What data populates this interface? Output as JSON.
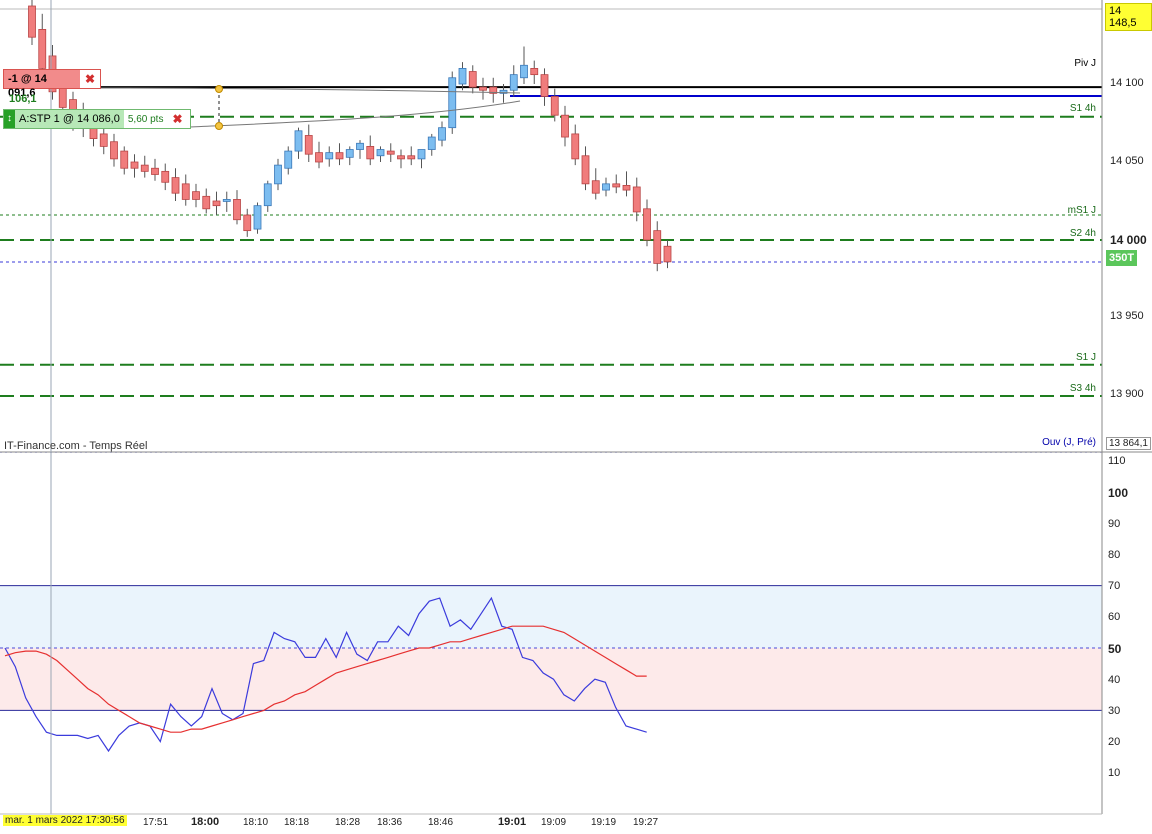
{
  "source_label": "IT-Finance.com - Temps Réel",
  "price_axis": {
    "ticks": [
      "14 100",
      "14 050",
      "14 000",
      "13 950",
      "13 900"
    ],
    "top_tag": "14 148,5",
    "bottom_tag": "13 864,1",
    "volume_tag": "350T"
  },
  "levels": [
    {
      "name": "Piv J",
      "value": 14098
    },
    {
      "name": "S1 4h",
      "value": 14079
    },
    {
      "name": "mS1 J",
      "value": 14016
    },
    {
      "name": "S2 4h",
      "value": 14000
    },
    {
      "name": "S1 J",
      "value": 13920
    },
    {
      "name": "S3 4h",
      "value": 13900
    },
    {
      "name": "Ouv (J, Pré)",
      "value": 13864
    }
  ],
  "orders": {
    "limit_label": "-1 @ 14 091,6",
    "stop_label": "A:STP  1 @ 14 086,0",
    "stop_points": "5,60 pts",
    "gain_label": "106,1"
  },
  "time_axis": {
    "first": "mar. 1 mars 2022 17:30:56",
    "ticks": [
      "17:51",
      "18:00",
      "18:10",
      "18:18",
      "18:28",
      "18:36",
      "18:46",
      "19:01",
      "19:09",
      "19:19",
      "19:27"
    ]
  },
  "osc_axis": {
    "ticks": [
      "110",
      "100",
      "90",
      "80",
      "70",
      "60",
      "50",
      "40",
      "30",
      "20",
      "10"
    ]
  },
  "colors": {
    "up": "#7cbdf0",
    "down": "#f07c7c",
    "level_green": "#1e7d1e",
    "pivot": "#000000",
    "blue_line": "#0000cc",
    "osc_blue": "#3b3bdc",
    "osc_red": "#e63030"
  },
  "chart_data": [
    {
      "type": "candlestick",
      "ylim": [
        13864,
        14148.5
      ],
      "candles": [
        [
          14150,
          14160,
          14130,
          14125
        ],
        [
          14135,
          14145,
          14110,
          14105
        ],
        [
          14118,
          14125,
          14095,
          14090
        ],
        [
          14100,
          14105,
          14085,
          14080
        ],
        [
          14090,
          14095,
          14078,
          14070
        ],
        [
          14080,
          14088,
          14072,
          14066
        ],
        [
          14074,
          14079,
          14065,
          14060
        ],
        [
          14068,
          14074,
          14060,
          14055
        ],
        [
          14063,
          14068,
          14052,
          14047
        ],
        [
          14057,
          14060,
          14046,
          14042
        ],
        [
          14050,
          14055,
          14046,
          14040
        ],
        [
          14048,
          14054,
          14044,
          14040
        ],
        [
          14046,
          14052,
          14042,
          14038
        ],
        [
          14044,
          14049,
          14037,
          14032
        ],
        [
          14040,
          14046,
          14030,
          14025
        ],
        [
          14036,
          14042,
          14026,
          14022
        ],
        [
          14031,
          14036,
          14026,
          14021
        ],
        [
          14028,
          14033,
          14020,
          14017
        ],
        [
          14025,
          14031,
          14022,
          14016
        ],
        [
          14025,
          14031,
          14026,
          14018
        ],
        [
          14026,
          14032,
          14013,
          14010
        ],
        [
          14016,
          14020,
          14006,
          14002
        ],
        [
          14007,
          14024,
          14022,
          14004
        ],
        [
          14022,
          14038,
          14036,
          14018
        ],
        [
          14036,
          14052,
          14048,
          14032
        ],
        [
          14046,
          14060,
          14057,
          14042
        ],
        [
          14057,
          14072,
          14070,
          14052
        ],
        [
          14067,
          14074,
          14055,
          14050
        ],
        [
          14056,
          14063,
          14050,
          14046
        ],
        [
          14052,
          14060,
          14056,
          14047
        ],
        [
          14056,
          14062,
          14052,
          14048
        ],
        [
          14053,
          14060,
          14058,
          14048
        ],
        [
          14058,
          14064,
          14062,
          14052
        ],
        [
          14060,
          14067,
          14052,
          14048
        ],
        [
          14054,
          14060,
          14058,
          14050
        ],
        [
          14057,
          14062,
          14055,
          14050
        ],
        [
          14054,
          14058,
          14052,
          14046
        ],
        [
          14054,
          14060,
          14052,
          14048
        ],
        [
          14052,
          14058,
          14058,
          14046
        ],
        [
          14058,
          14068,
          14066,
          14054
        ],
        [
          14064,
          14076,
          14072,
          14060
        ],
        [
          14072,
          14108,
          14104,
          14068
        ],
        [
          14100,
          14114,
          14110,
          14096
        ],
        [
          14108,
          14112,
          14098,
          14094
        ],
        [
          14098,
          14104,
          14096,
          14090
        ],
        [
          14098,
          14104,
          14094,
          14088
        ],
        [
          14094,
          14100,
          14096,
          14088
        ],
        [
          14096,
          14112,
          14106,
          14092
        ],
        [
          14104,
          14124,
          14112,
          14100
        ],
        [
          14110,
          14115,
          14106,
          14100
        ],
        [
          14106,
          14110,
          14092,
          14086
        ],
        [
          14092,
          14097,
          14080,
          14076
        ],
        [
          14080,
          14086,
          14066,
          14060
        ],
        [
          14068,
          14074,
          14052,
          14048
        ],
        [
          14054,
          14060,
          14036,
          14032
        ],
        [
          14038,
          14046,
          14030,
          14026
        ],
        [
          14032,
          14040,
          14036,
          14028
        ],
        [
          14036,
          14042,
          14034,
          14030
        ],
        [
          14035,
          14044,
          14032,
          14028
        ],
        [
          14034,
          14040,
          14018,
          14012
        ],
        [
          14020,
          14026,
          14000,
          13996
        ],
        [
          14006,
          14012,
          13985,
          13980
        ],
        [
          13996,
          14000,
          13986,
          13982
        ]
      ]
    },
    {
      "type": "line",
      "ylim": [
        0,
        115
      ],
      "reference_lines": [
        70,
        50,
        30
      ],
      "series": [
        {
          "values": [
            50,
            44,
            34,
            28,
            23,
            22,
            22,
            22,
            21,
            22,
            17,
            22,
            25,
            26,
            25,
            20,
            32,
            28,
            25,
            28,
            37,
            29,
            27,
            29,
            45,
            46,
            55,
            53,
            52,
            47,
            47,
            53,
            47,
            55,
            48,
            46,
            52,
            52,
            57,
            54,
            61,
            65,
            66,
            57,
            59,
            56,
            61,
            66,
            57,
            56,
            47,
            46,
            42,
            40,
            35,
            33,
            37,
            40,
            39,
            31,
            25,
            24,
            23
          ]
        },
        {
          "values": [
            47.5,
            48.5,
            49,
            49,
            48,
            46,
            43,
            40,
            37,
            35,
            32,
            30,
            28,
            26,
            25,
            24,
            23,
            23,
            24,
            24,
            25,
            26,
            27,
            28,
            29,
            30,
            32,
            33,
            35,
            36,
            38,
            40,
            42,
            43,
            44,
            45,
            46,
            47,
            48,
            49,
            50,
            50,
            51,
            52,
            52,
            53,
            54,
            55,
            56,
            57,
            57,
            57,
            57,
            56,
            55,
            53,
            51,
            49,
            47,
            45,
            43,
            41,
            41
          ]
        }
      ]
    }
  ]
}
